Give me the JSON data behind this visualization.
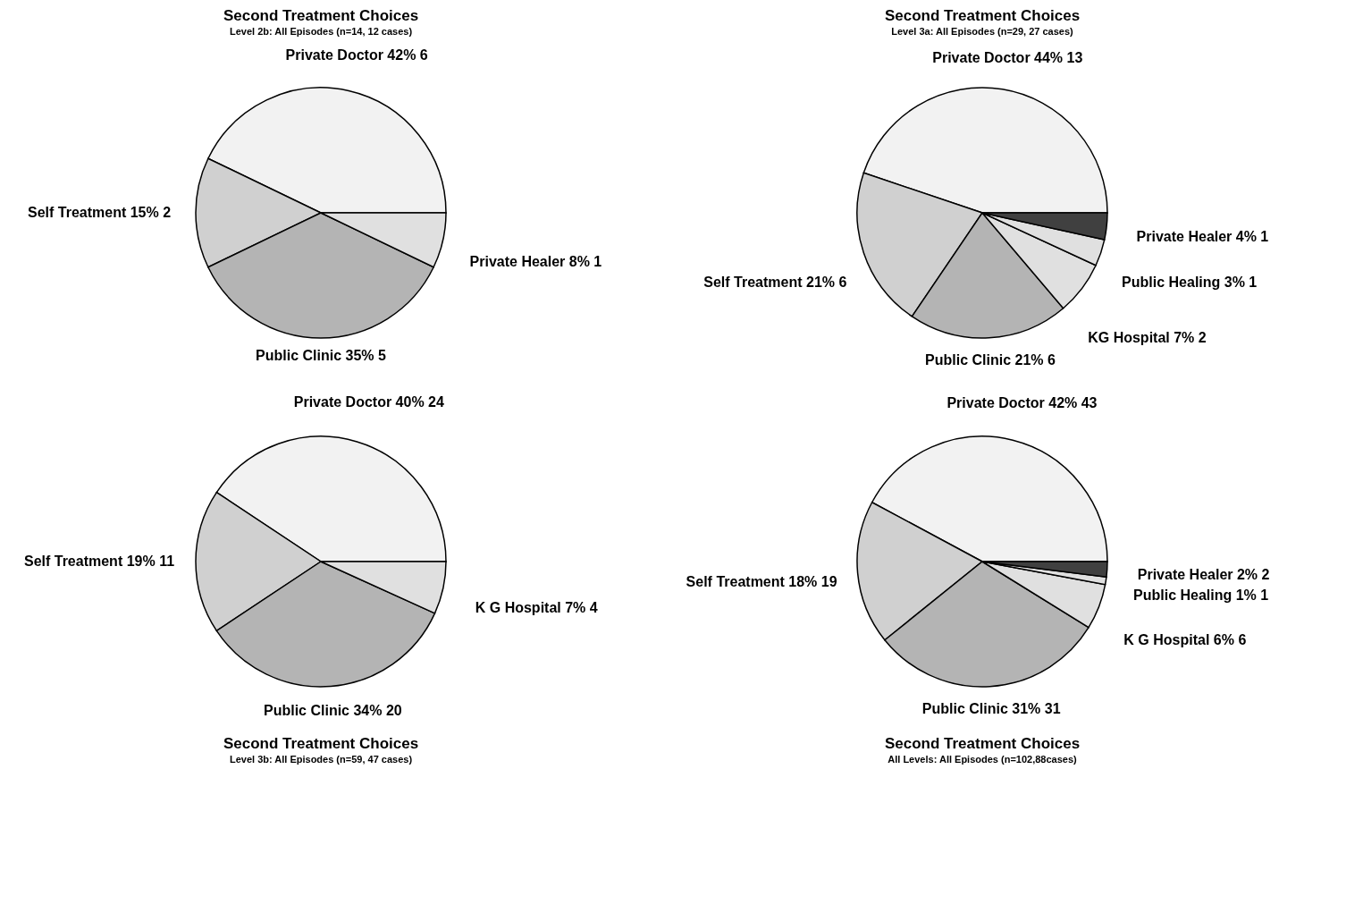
{
  "chart_data": [
    {
      "type": "pie",
      "title": "Second Treatment Choices",
      "subtitle": "Level 2b: All Episodes (n=14, 12 cases)",
      "categories": [
        "Private Doctor",
        "Self Treatment",
        "Public Clinic",
        "Private Healer"
      ],
      "values": [
        6,
        2,
        5,
        1
      ],
      "value_labels": [
        "42% 6",
        "15% 2",
        "35% 5",
        "8% 1"
      ],
      "colors": [
        "#f2f2f2",
        "#d0d0d0",
        "#b4b4b4",
        "#e0e0e0"
      ]
    },
    {
      "type": "pie",
      "title": "Second Treatment Choices",
      "subtitle": "Level 3a: All Episodes (n=29, 27 cases)",
      "categories": [
        "Private Doctor",
        "Self Treatment",
        "Public Clinic",
        "KG Hospital",
        "Public Healing",
        "Private Healer"
      ],
      "values": [
        13,
        6,
        6,
        2,
        1,
        1
      ],
      "value_labels": [
        "44% 13",
        "21% 6",
        "21% 6",
        "7% 2",
        "3% 1",
        "4% 1"
      ],
      "colors": [
        "#f2f2f2",
        "#d0d0d0",
        "#b4b4b4",
        "#e0e0e0",
        "#e0e0e0",
        "#404040"
      ]
    },
    {
      "type": "pie",
      "title": "Second Treatment Choices",
      "subtitle": "Level 3b: All Episodes (n=59, 47 cases)",
      "categories": [
        "Private Doctor",
        "Self Treatment",
        "Public Clinic",
        "K G Hospital"
      ],
      "values": [
        24,
        11,
        20,
        4
      ],
      "value_labels": [
        "40% 24",
        "19% 11",
        "34% 20",
        "7% 4"
      ],
      "colors": [
        "#f2f2f2",
        "#d0d0d0",
        "#b4b4b4",
        "#e0e0e0"
      ]
    },
    {
      "type": "pie",
      "title": "Second Treatment Choices",
      "subtitle": "All Levels: All Episodes (n=102,88cases)",
      "categories": [
        "Private Doctor",
        "Self Treatment",
        "Public Clinic",
        "K G Hospital",
        "Public Healing",
        "Private Healer"
      ],
      "values": [
        43,
        19,
        31,
        6,
        1,
        2
      ],
      "value_labels": [
        "42% 43",
        "18% 19",
        "31% 31",
        "6% 6",
        "1% 1",
        "2% 2"
      ],
      "colors": [
        "#f2f2f2",
        "#d0d0d0",
        "#b4b4b4",
        "#e0e0e0",
        "#e0e0e0",
        "#404040"
      ]
    }
  ]
}
